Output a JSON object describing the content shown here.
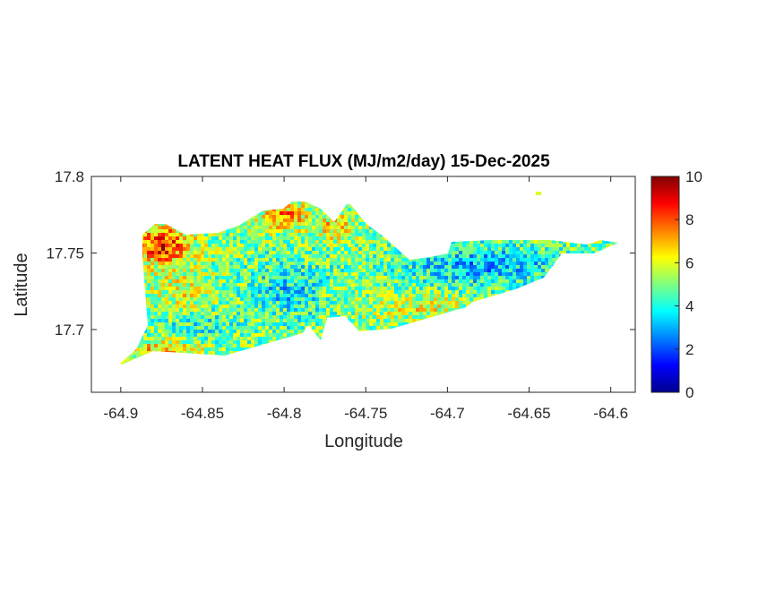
{
  "chart_data": {
    "type": "heatmap",
    "title": "LATENT HEAT FLUX (MJ/m2/day) 15-Dec-2025",
    "xlabel": "Longitude",
    "ylabel": "Latitude",
    "xlim": [
      -64.918,
      -64.585
    ],
    "ylim": [
      17.659,
      17.8
    ],
    "xticks": [
      -64.9,
      -64.85,
      -64.8,
      -64.75,
      -64.7,
      -64.65,
      -64.6
    ],
    "xtick_labels": [
      "-64.9",
      "-64.85",
      "-64.8",
      "-64.75",
      "-64.7",
      "-64.65",
      "-64.6"
    ],
    "yticks": [
      17.7,
      17.75,
      17.8
    ],
    "ytick_labels": [
      "17.7",
      "17.75",
      "17.8"
    ],
    "colorbar": {
      "colormap": "jet",
      "clim": [
        0,
        10
      ],
      "ticks": [
        0,
        2,
        4,
        6,
        8,
        10
      ],
      "tick_labels": [
        "0",
        "2",
        "4",
        "6",
        "8",
        "10"
      ]
    },
    "grid": false,
    "regions": [
      {
        "area": "northwest",
        "typical_value": 8.5
      },
      {
        "area": "north-central",
        "typical_value": 7
      },
      {
        "area": "west-central",
        "typical_value": 5
      },
      {
        "area": "central",
        "typical_value": 4
      },
      {
        "area": "east",
        "typical_value": 3
      },
      {
        "area": "southeast",
        "typical_value": 5.5
      }
    ]
  }
}
